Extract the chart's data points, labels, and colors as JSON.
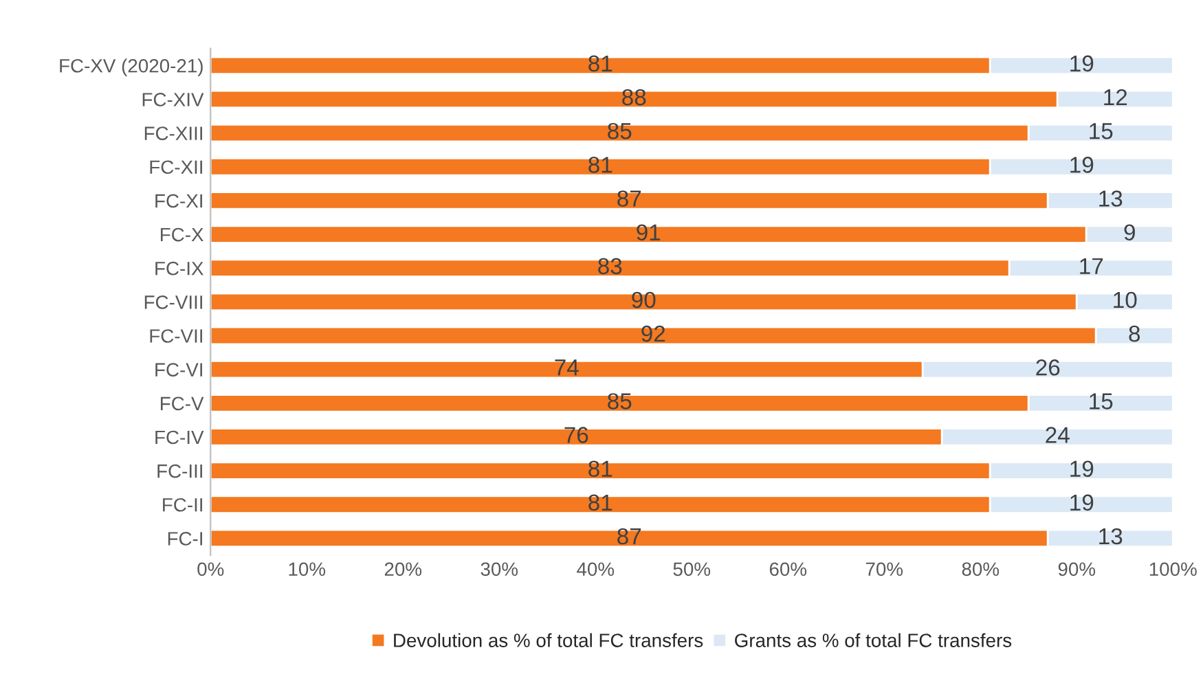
{
  "chart_data": {
    "type": "bar",
    "orientation": "horizontal",
    "stacked": true,
    "categories": [
      "FC-XV (2020-21)",
      "FC-XIV",
      "FC-XIII",
      "FC-XII",
      "FC-XI",
      "FC-X",
      "FC-IX",
      "FC-VIII",
      "FC-VII",
      "FC-VI",
      "FC-V",
      "FC-IV",
      "FC-III",
      "FC-II",
      "FC-I"
    ],
    "series": [
      {
        "name": "Devolution as % of total FC transfers",
        "color": "#f47920",
        "values": [
          81,
          88,
          85,
          81,
          87,
          91,
          83,
          90,
          92,
          74,
          85,
          76,
          81,
          81,
          87
        ]
      },
      {
        "name": "Grants as % of total FC transfers",
        "color": "#dbe8f5",
        "values": [
          19,
          12,
          15,
          19,
          13,
          9,
          17,
          10,
          8,
          26,
          15,
          24,
          19,
          19,
          13
        ]
      }
    ],
    "xlim": [
      0,
      100
    ],
    "xticks": [
      {
        "value": 0,
        "label": "0%"
      },
      {
        "value": 10,
        "label": "10%"
      },
      {
        "value": 20,
        "label": "20%"
      },
      {
        "value": 30,
        "label": "30%"
      },
      {
        "value": 40,
        "label": "40%"
      },
      {
        "value": 50,
        "label": "50%"
      },
      {
        "value": 60,
        "label": "60%"
      },
      {
        "value": 70,
        "label": "70%"
      },
      {
        "value": 80,
        "label": "80%"
      },
      {
        "value": 90,
        "label": "90%"
      },
      {
        "value": 100,
        "label": "100%"
      }
    ],
    "data_labels": true,
    "legend": "bottom",
    "grid": false
  }
}
